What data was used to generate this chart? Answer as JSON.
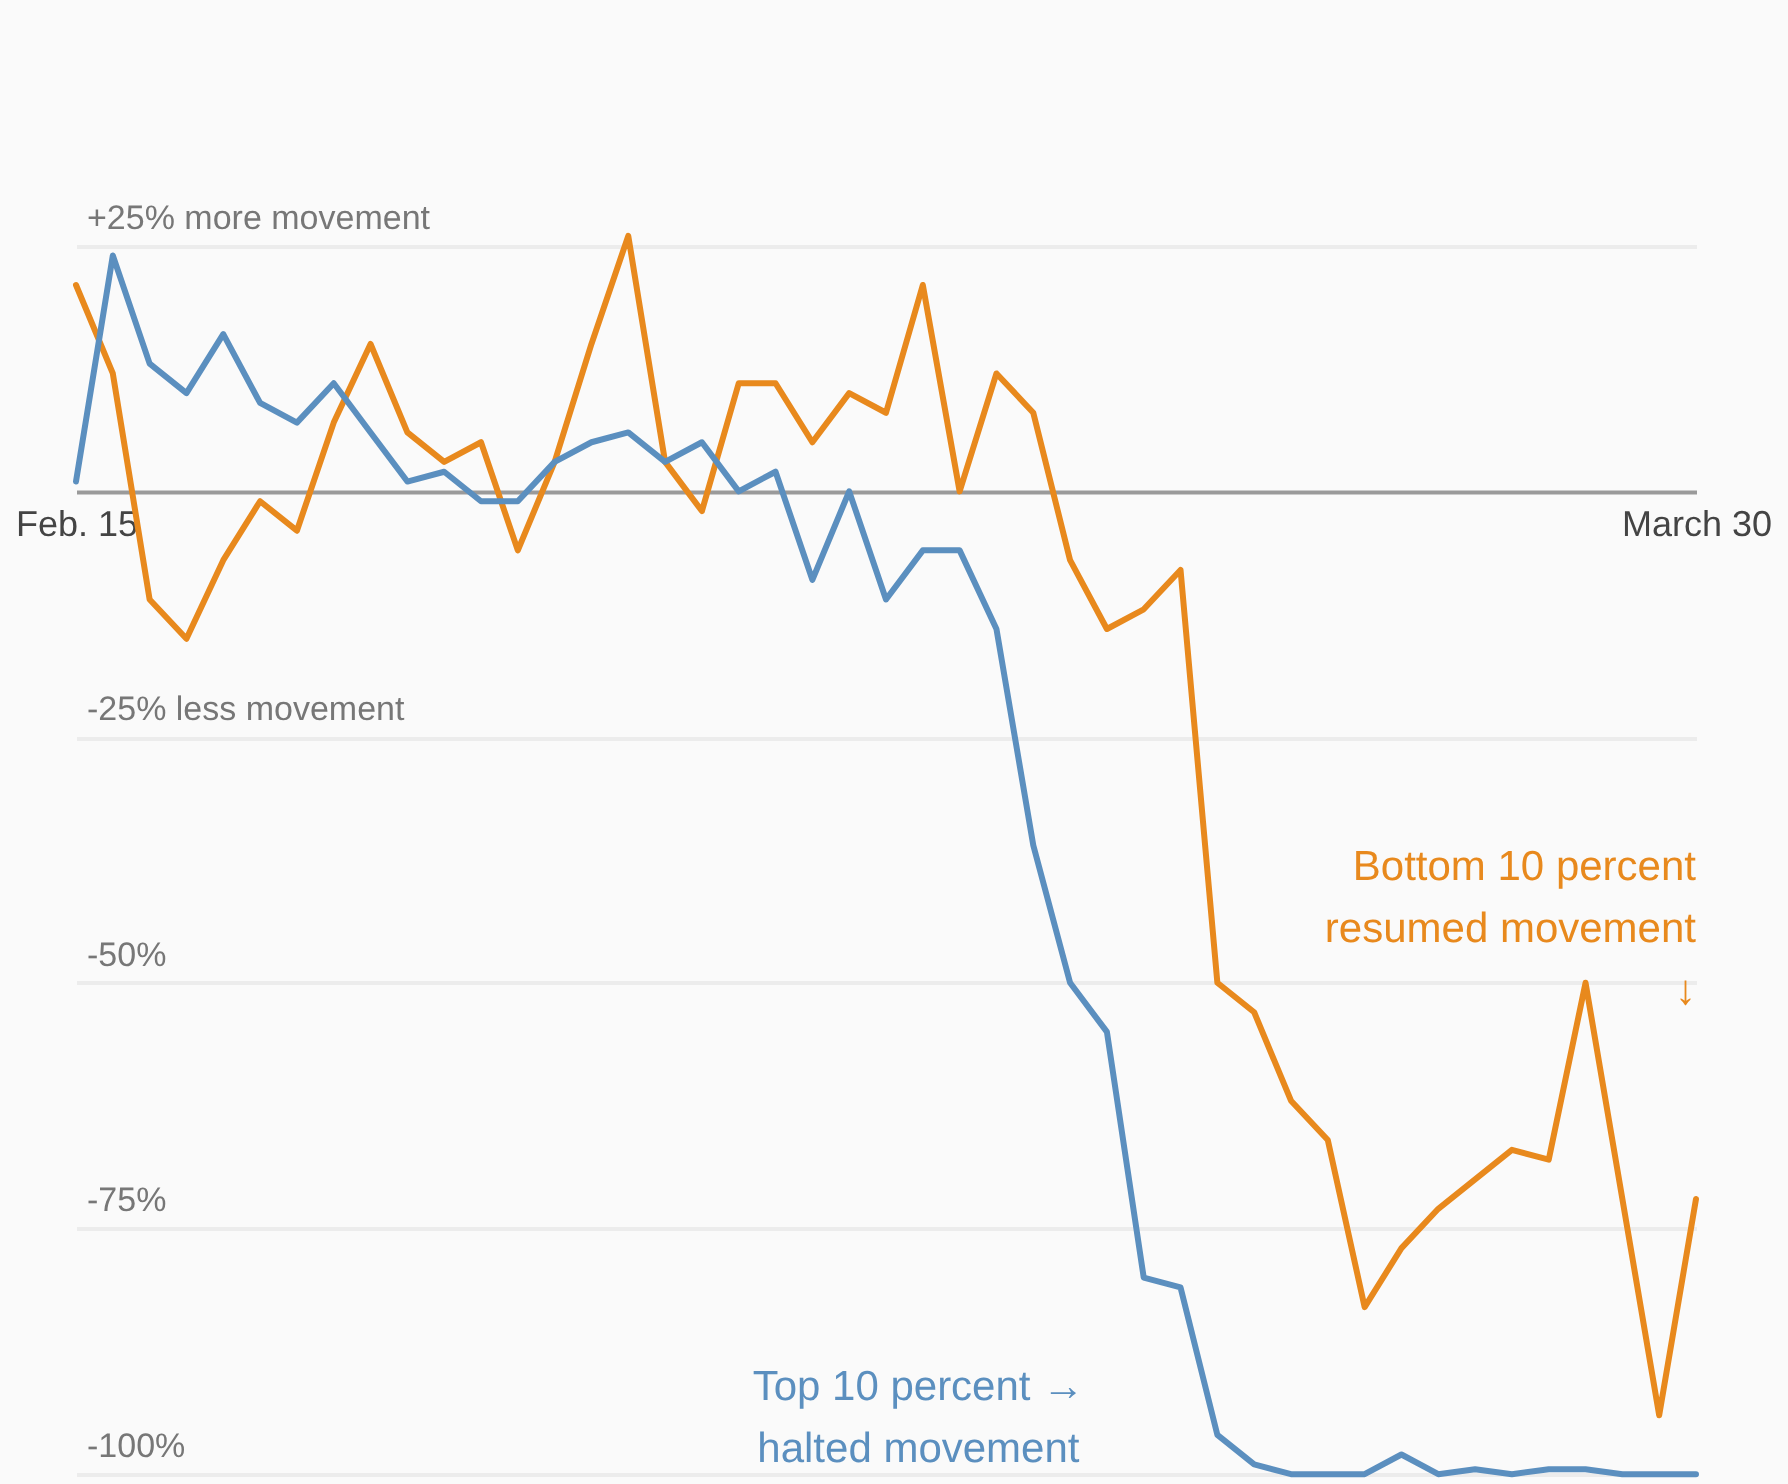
{
  "chart_data": {
    "type": "line",
    "x": [
      "--02-15",
      "--02-16",
      "--02-17",
      "--02-18",
      "--02-19",
      "--02-20",
      "--02-21",
      "--02-22",
      "--02-23",
      "--02-24",
      "--02-25",
      "--02-26",
      "--02-27",
      "--02-28",
      "--02-29",
      "--03-01",
      "--03-02",
      "--03-03",
      "--03-04",
      "--03-05",
      "--03-06",
      "--03-07",
      "--03-08",
      "--03-09",
      "--03-10",
      "--03-11",
      "--03-12",
      "--03-13",
      "--03-14",
      "--03-15",
      "--03-16",
      "--03-17",
      "--03-18",
      "--03-19",
      "--03-20",
      "--03-21",
      "--03-22",
      "--03-23",
      "--03-24",
      "--03-25",
      "--03-26",
      "--03-27",
      "--03-28",
      "--03-29",
      "--03-30"
    ],
    "series": [
      {
        "name": "Bottom 10 percent\nresumed movement\n↓",
        "color": "#e8891d",
        "values": [
          21,
          12,
          -11,
          -15,
          -7,
          -1,
          -4,
          7,
          15,
          6,
          3,
          5,
          -6,
          3,
          15,
          26,
          3,
          -2,
          11,
          11,
          5,
          10,
          8,
          21,
          0,
          12,
          8,
          -7,
          -14,
          -12,
          -8,
          -50,
          -53,
          -62,
          -66,
          -83,
          -77,
          -73,
          -70,
          -67,
          -68,
          -50,
          -72,
          -94,
          -72
        ]
      },
      {
        "name": "Top 10 percent →\nhalted movement",
        "color": "#5b8fbf",
        "values": [
          1,
          24,
          13,
          10,
          16,
          9,
          7,
          11,
          6,
          1,
          2,
          -1,
          -1,
          3,
          5,
          6,
          3,
          5,
          0,
          2,
          -9,
          0,
          -11,
          -6,
          -6,
          -14,
          -36,
          -50,
          -55,
          -80,
          -81,
          -96,
          -99,
          -100,
          -100,
          -100,
          -98,
          -100,
          -99.5,
          -100,
          -99.5,
          -99.5,
          -100,
          -100,
          -100
        ]
      }
    ],
    "xlim": [
      "--02-15",
      "--03-30"
    ],
    "xticks": [
      {
        "value": "--02-15",
        "label": "Feb. 15"
      },
      {
        "value": "--03-30",
        "label": "March 30"
      }
    ],
    "ylim": [
      -101,
      50
    ],
    "yticks": [
      {
        "value": 25,
        "label": "+25% more movement"
      },
      {
        "value": -25,
        "label": "-25% less movement"
      },
      {
        "value": -50,
        "label": "-50%"
      },
      {
        "value": -75,
        "label": "-75%"
      },
      {
        "value": -100,
        "label": "-100%"
      }
    ],
    "grid": "y",
    "marker": "none",
    "line_style": "solid"
  }
}
